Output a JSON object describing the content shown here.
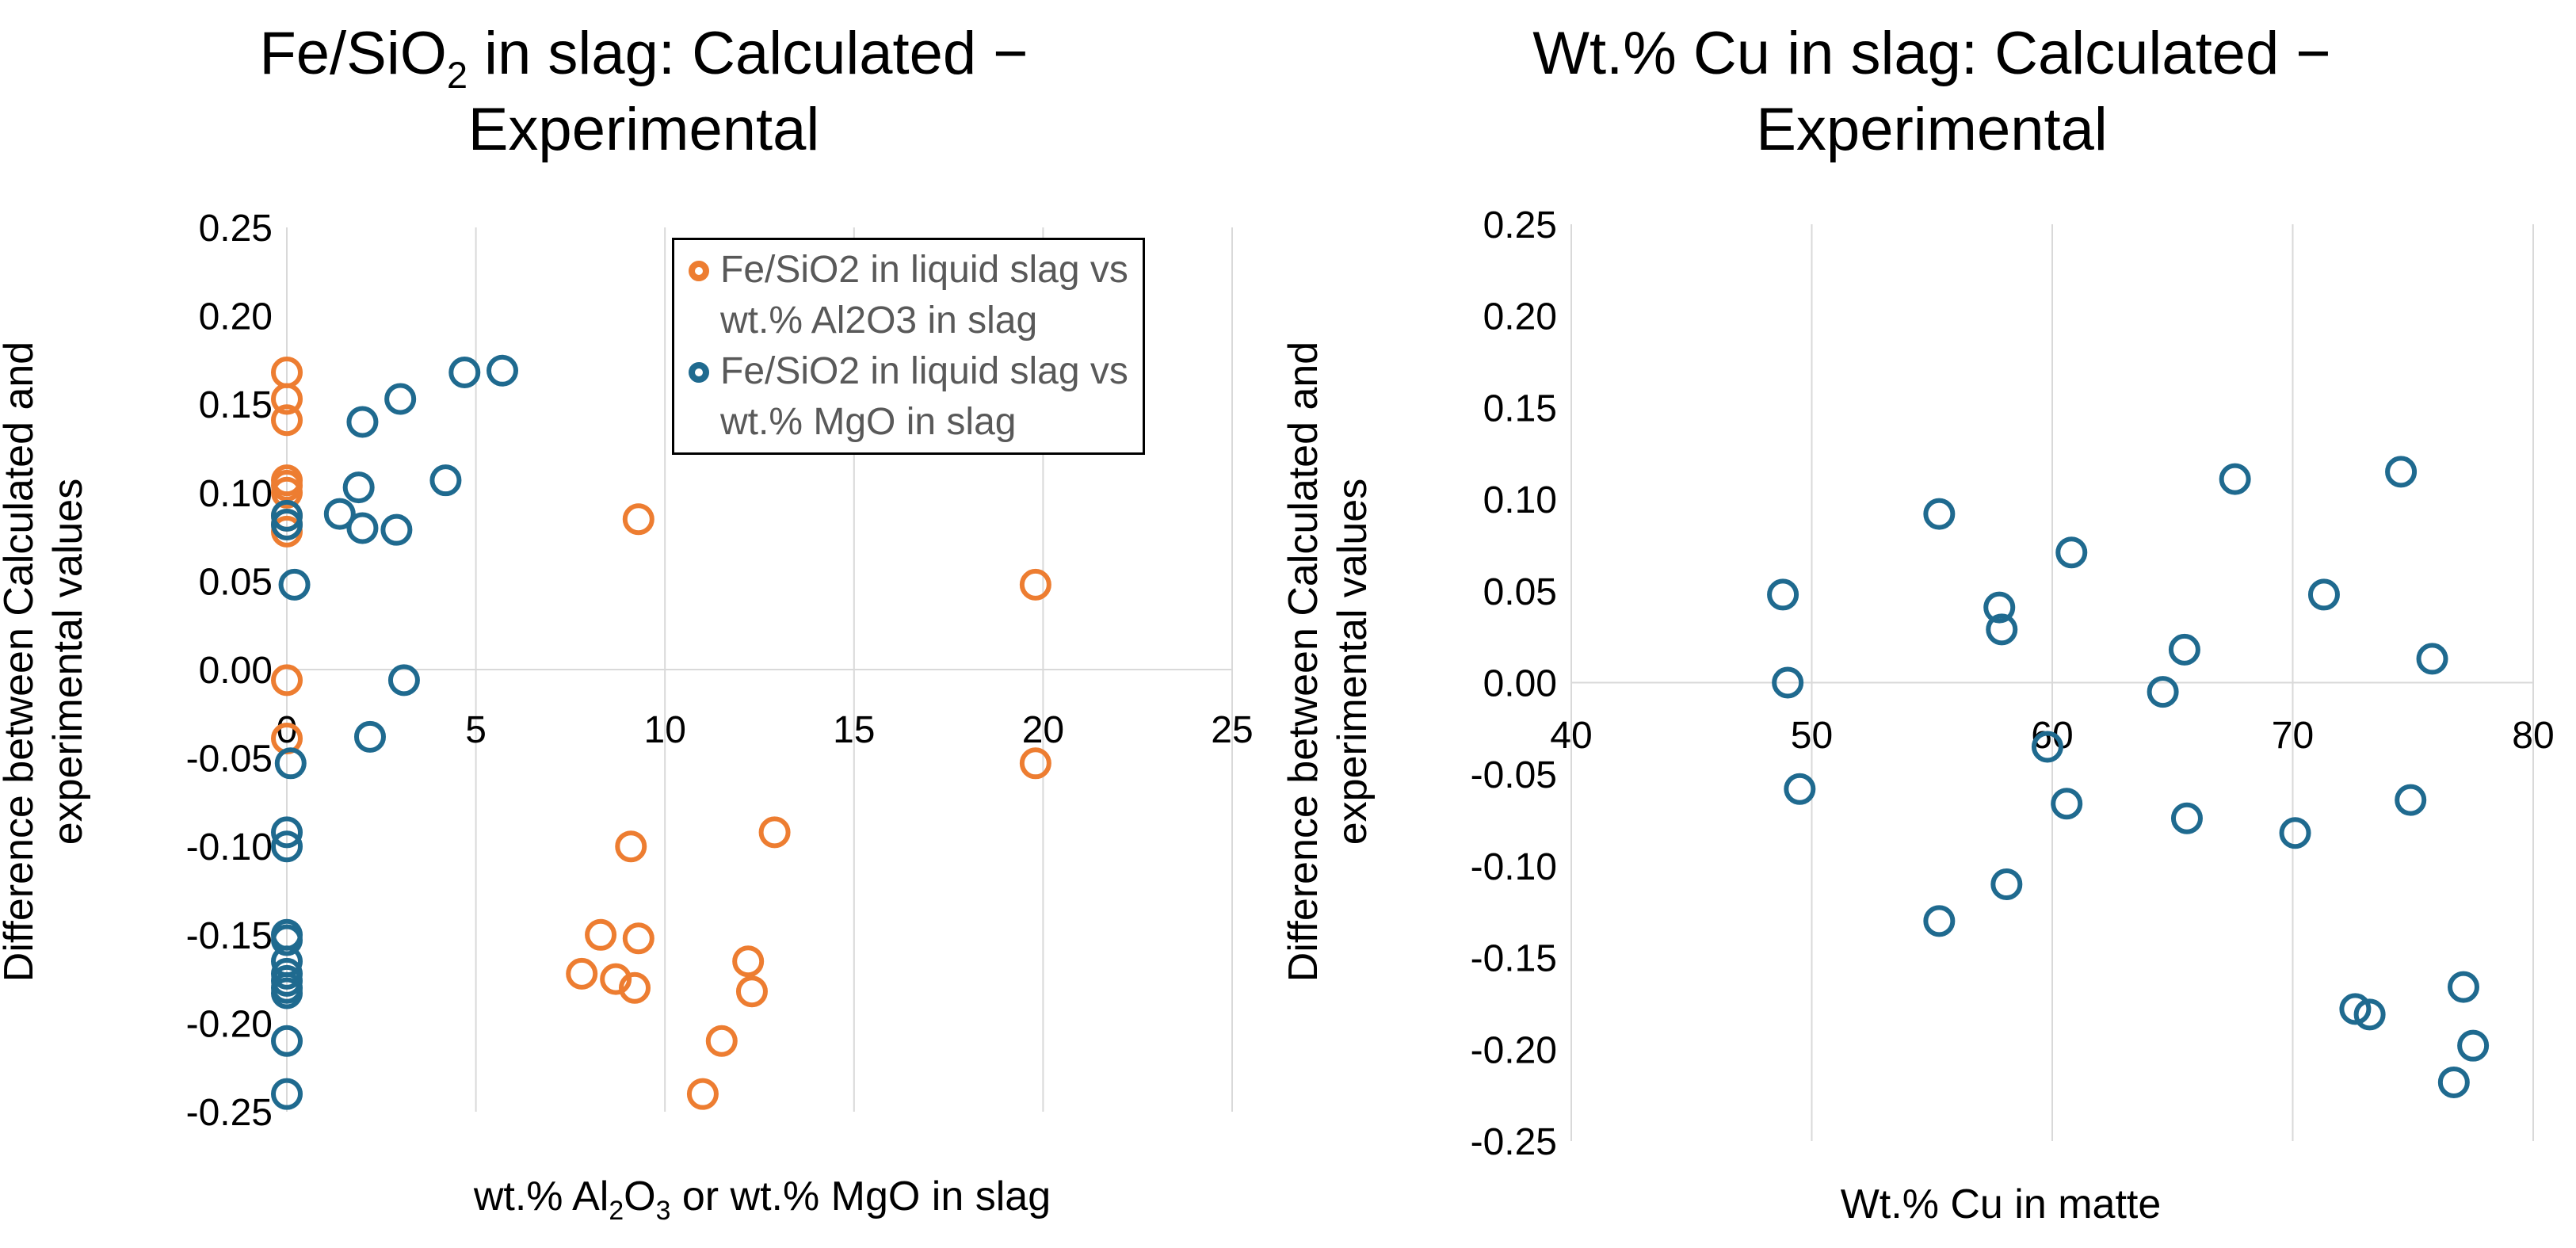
{
  "chart_data": [
    {
      "type": "scatter",
      "title_parts": [
        "Fe/SiO",
        "2",
        " in slag: Calculated −",
        "Experimental"
      ],
      "xlabel_parts": [
        "wt.% Al",
        "2",
        "O",
        "3",
        " or wt.% MgO in slag"
      ],
      "ylabel_lines": [
        "Difference between Calculated and",
        "experimental values"
      ],
      "xlim": [
        0,
        25
      ],
      "ylim": [
        -0.25,
        0.25
      ],
      "x_ticks": [
        0,
        5,
        10,
        15,
        20,
        25
      ],
      "x_tick_labels": [
        "0",
        "5",
        "10",
        "15",
        "20",
        "25"
      ],
      "y_ticks": [
        -0.25,
        -0.2,
        -0.15,
        -0.1,
        -0.05,
        0,
        0.05,
        0.1,
        0.15,
        0.2,
        0.25
      ],
      "y_tick_labels": [
        "-0.25",
        "-0.20",
        "-0.15",
        "-0.10",
        "-0.05",
        "0.00",
        "0.05",
        "0.10",
        "0.15",
        "0.20",
        "0.25"
      ],
      "grid": "vertical",
      "legend_position": "top-right",
      "series": [
        {
          "name": "Fe/SiO2 in liquid slag vs wt.% Al2O3 in slag",
          "legend_lines": [
            "Fe/SiO2 in liquid slag vs",
            "wt.% Al2O3 in slag"
          ],
          "color": "#ED7D31",
          "points": [
            [
              0,
              0.168
            ],
            [
              0,
              0.153
            ],
            [
              0,
              0.141
            ],
            [
              0,
              0.107
            ],
            [
              0,
              0.104
            ],
            [
              0,
              0.1
            ],
            [
              0,
              0.087
            ],
            [
              0,
              0.082
            ],
            [
              0,
              0.078
            ],
            [
              0,
              -0.006
            ],
            [
              0,
              -0.039
            ],
            [
              9.3,
              0.085
            ],
            [
              19.8,
              0.048
            ],
            [
              19.8,
              -0.053
            ],
            [
              9.1,
              -0.1
            ],
            [
              12.9,
              -0.092
            ],
            [
              8.3,
              -0.15
            ],
            [
              9.3,
              -0.152
            ],
            [
              7.8,
              -0.172
            ],
            [
              8.7,
              -0.175
            ],
            [
              9.2,
              -0.18
            ],
            [
              12.2,
              -0.165
            ],
            [
              12.3,
              -0.182
            ],
            [
              11.5,
              -0.21
            ],
            [
              11.0,
              -0.24
            ]
          ]
        },
        {
          "name": "Fe/SiO2 in liquid slag vs wt.% MgO in slag",
          "legend_lines": [
            "Fe/SiO2 in liquid slag vs",
            "wt.% MgO in slag"
          ],
          "color": "#1F6A8F",
          "points": [
            [
              4.7,
              0.168
            ],
            [
              5.7,
              0.169
            ],
            [
              3.0,
              0.153
            ],
            [
              2.0,
              0.14
            ],
            [
              4.2,
              0.107
            ],
            [
              1.9,
              0.103
            ],
            [
              1.4,
              0.088
            ],
            [
              2.0,
              0.08
            ],
            [
              2.9,
              0.079
            ],
            [
              0,
              0.087
            ],
            [
              0,
              0.082
            ],
            [
              0.2,
              0.048
            ],
            [
              3.1,
              -0.006
            ],
            [
              2.2,
              -0.038
            ],
            [
              0.1,
              -0.053
            ],
            [
              0,
              -0.092
            ],
            [
              0,
              -0.1
            ],
            [
              0,
              -0.15
            ],
            [
              0,
              -0.153
            ],
            [
              0,
              -0.165
            ],
            [
              0,
              -0.172
            ],
            [
              0,
              -0.176
            ],
            [
              0,
              -0.18
            ],
            [
              0,
              -0.183
            ],
            [
              0,
              -0.21
            ],
            [
              0,
              -0.24
            ]
          ]
        }
      ]
    },
    {
      "type": "scatter",
      "title_lines": [
        "Wt.% Cu in slag: Calculated −",
        "Experimental"
      ],
      "xlabel": "Wt.% Cu in matte",
      "ylabel_lines": [
        "Difference between Calculated and",
        "experimental values"
      ],
      "xlim": [
        40,
        80
      ],
      "ylim": [
        -0.25,
        0.25
      ],
      "x_ticks": [
        40,
        50,
        60,
        70,
        80
      ],
      "x_tick_labels": [
        "40",
        "50",
        "60",
        "70",
        "80"
      ],
      "y_ticks": [
        -0.25,
        -0.2,
        -0.15,
        -0.1,
        -0.05,
        0,
        0.05,
        0.1,
        0.15,
        0.2,
        0.25
      ],
      "y_tick_labels": [
        "-0.25",
        "-0.20",
        "-0.15",
        "-0.10",
        "-0.05",
        "0.00",
        "0.05",
        "0.10",
        "0.15",
        "0.20",
        "0.25"
      ],
      "grid": "vertical",
      "series": [
        {
          "name": "Wt.% Cu in slag",
          "color": "#1F6A8F",
          "points": [
            [
              48.8,
              0.048
            ],
            [
              49.0,
              0.0
            ],
            [
              49.5,
              -0.058
            ],
            [
              55.3,
              0.092
            ],
            [
              55.3,
              -0.13
            ],
            [
              57.8,
              0.041
            ],
            [
              57.9,
              0.029
            ],
            [
              58.1,
              -0.11
            ],
            [
              59.8,
              -0.035
            ],
            [
              60.6,
              -0.066
            ],
            [
              60.8,
              0.071
            ],
            [
              64.6,
              -0.005
            ],
            [
              65.5,
              0.018
            ],
            [
              65.6,
              -0.074
            ],
            [
              67.6,
              0.111
            ],
            [
              70.1,
              -0.082
            ],
            [
              71.3,
              0.048
            ],
            [
              72.6,
              -0.178
            ],
            [
              73.2,
              -0.181
            ],
            [
              74.5,
              0.115
            ],
            [
              74.9,
              -0.064
            ],
            [
              75.8,
              0.013
            ],
            [
              76.7,
              -0.218
            ],
            [
              77.1,
              -0.166
            ],
            [
              77.5,
              -0.198
            ]
          ]
        }
      ]
    }
  ]
}
